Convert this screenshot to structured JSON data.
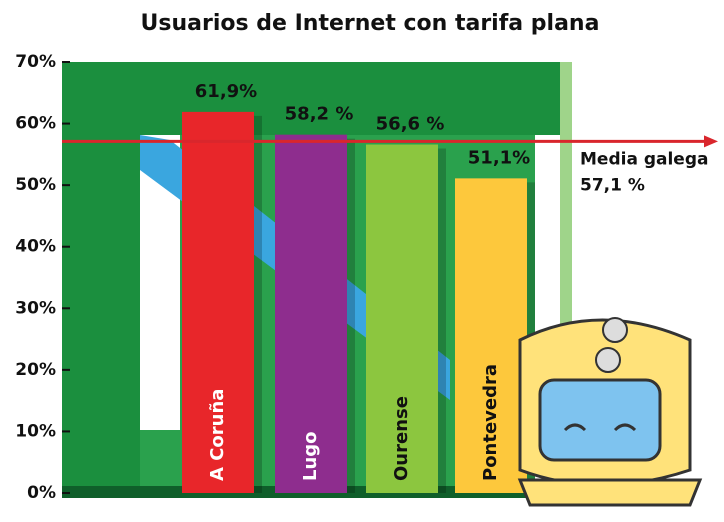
{
  "chart_data": {
    "type": "bar",
    "title": "Usuarios de Internet con tarifa plana",
    "categories": [
      "A Coruña",
      "Lugo",
      "Ourense",
      "Pontevedra"
    ],
    "values": [
      61.9,
      58.2,
      56.6,
      51.1
    ],
    "value_labels": [
      "61,9%",
      "58,2 %",
      "56,6 %",
      "51,1%"
    ],
    "colors": [
      "#e8262a",
      "#8e2d8e",
      "#8cc63f",
      "#fdc83c"
    ],
    "ylim": [
      0,
      70
    ],
    "yticks": [
      {
        "value": 0,
        "label": "0%"
      },
      {
        "value": 10,
        "label": "10%"
      },
      {
        "value": 20,
        "label": "20%"
      },
      {
        "value": 30,
        "label": "30%"
      },
      {
        "value": 40,
        "label": "40%"
      },
      {
        "value": 50,
        "label": "50%"
      },
      {
        "value": 60,
        "label": "60%"
      },
      {
        "value": 70,
        "label": "70%"
      }
    ],
    "reference_line": {
      "value": 57.1,
      "label": "Media galega",
      "value_label": "57,1 %",
      "color": "#d9262c"
    }
  }
}
